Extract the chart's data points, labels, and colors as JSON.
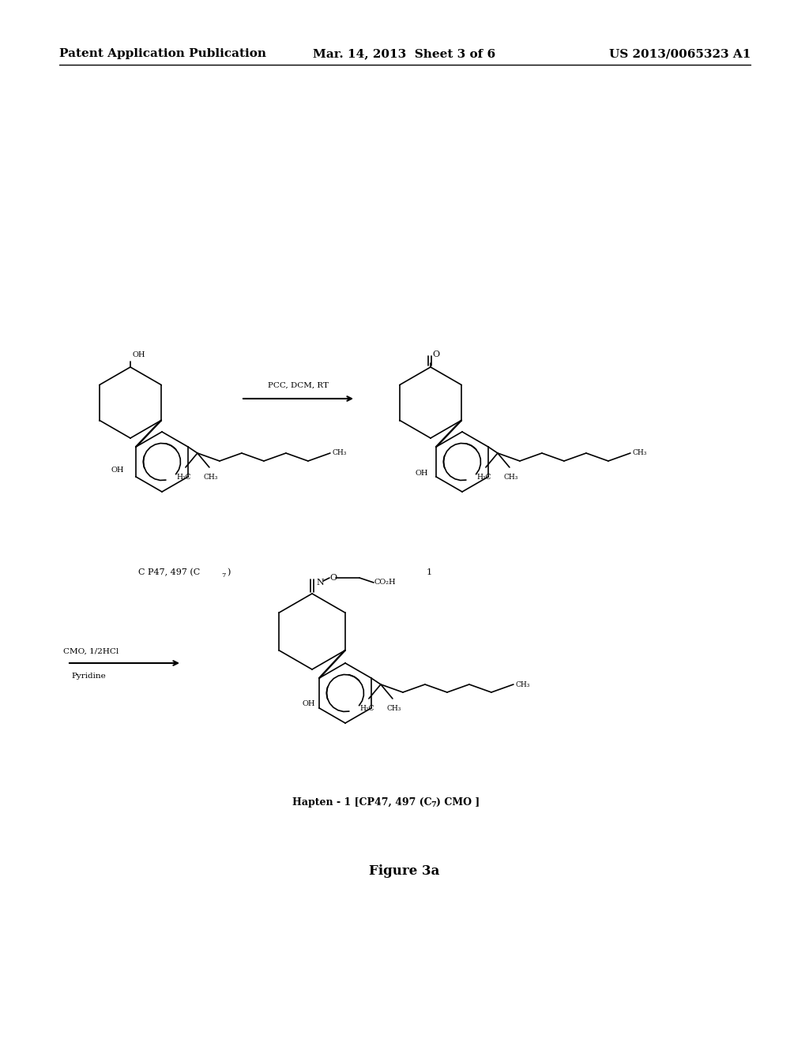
{
  "header_left": "Patent Application Publication",
  "header_mid": "Mar. 14, 2013  Sheet 3 of 6",
  "header_right": "US 2013/0065323 A1",
  "reaction1_arrow_text": "PCC, DCM, RT",
  "reaction2_arrow_text1": "CMO, 1/2HCl",
  "reaction2_arrow_text2": "Pyridine",
  "compound_label1": "C P47, 497 (C",
  "compound_label1_sub": "7",
  "compound_label1_end": ")",
  "compound_label2": "1",
  "hapten_label": "Hapten - 1 [CP47, 497 (C",
  "hapten_label_sub": "7",
  "hapten_label_end": ") CMO ]",
  "figure_label": "Figure 3a",
  "bg_color": "#ffffff",
  "text_color": "#000000",
  "line_color": "#000000",
  "header_fontsize": 11,
  "body_fontsize": 9,
  "bold_fontsize": 12
}
